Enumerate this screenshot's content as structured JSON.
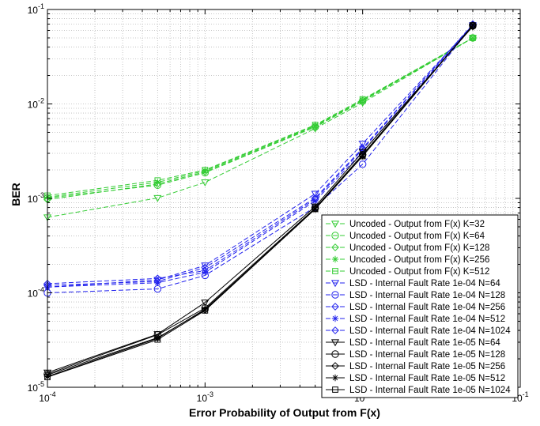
{
  "chart_data": {
    "type": "line",
    "title": "",
    "xlabel": "Error Probability of Output from F(x)",
    "ylabel": "BER",
    "xscale": "log",
    "yscale": "log",
    "xlim": [
      0.0001,
      0.1
    ],
    "ylim": [
      1e-05,
      0.1
    ],
    "grid": true,
    "legend_position": "bottom-right",
    "x_ticks": [
      {
        "value": 0.0001,
        "base": "10",
        "exp": "-4"
      },
      {
        "value": 0.001,
        "base": "10",
        "exp": "-3"
      },
      {
        "value": 0.01,
        "base": "10",
        "exp": "-2"
      },
      {
        "value": 0.1,
        "base": "10",
        "exp": "-1"
      }
    ],
    "y_ticks": [
      {
        "value": 1e-05,
        "base": "10",
        "exp": "-5"
      },
      {
        "value": 0.0001,
        "base": "10",
        "exp": "-4"
      },
      {
        "value": 0.001,
        "base": "10",
        "exp": "-3"
      },
      {
        "value": 0.01,
        "base": "10",
        "exp": "-2"
      },
      {
        "value": 0.1,
        "base": "10",
        "exp": "-1"
      }
    ],
    "x": [
      0.0001,
      0.0005,
      0.001,
      0.005,
      0.01,
      0.05
    ],
    "series": [
      {
        "name": "Uncoded - Output from F(x) K=32",
        "color": "#33cc33",
        "dash": true,
        "marker": "triangle-down",
        "values": [
          0.00063,
          0.00101,
          0.00148,
          0.0055,
          0.0103,
          0.05
        ]
      },
      {
        "name": "Uncoded - Output from F(x) K=64",
        "color": "#33cc33",
        "dash": true,
        "marker": "circle",
        "values": [
          0.00101,
          0.00138,
          0.00187,
          0.0057,
          0.0107,
          0.05
        ]
      },
      {
        "name": "Uncoded - Output from F(x) K=128",
        "color": "#33cc33",
        "dash": true,
        "marker": "diamond",
        "values": [
          0.00097,
          0.00142,
          0.00191,
          0.0058,
          0.0109,
          0.05
        ]
      },
      {
        "name": "Uncoded - Output from F(x) K=256",
        "color": "#33cc33",
        "dash": true,
        "marker": "star",
        "values": [
          0.00103,
          0.00148,
          0.00196,
          0.0059,
          0.011,
          0.05
        ]
      },
      {
        "name": "Uncoded - Output from F(x) K=512",
        "color": "#33cc33",
        "dash": true,
        "marker": "square",
        "values": [
          0.00107,
          0.00155,
          0.002,
          0.006,
          0.0112,
          0.05
        ]
      },
      {
        "name": "LSD - Internal Fault Rate 1e-04 N=64",
        "color": "#2222ee",
        "dash": true,
        "marker": "triangle-down",
        "values": [
          0.000115,
          0.000137,
          0.000195,
          0.00112,
          0.0038,
          0.068
        ]
      },
      {
        "name": "LSD - Internal Fault Rate 1e-04 N=128",
        "color": "#2222ee",
        "dash": true,
        "marker": "circle",
        "values": [
          0.0001,
          0.00011,
          0.000153,
          0.00081,
          0.0023,
          0.068
        ]
      },
      {
        "name": "LSD - Internal Fault Rate 1e-04 N=256",
        "color": "#2222ee",
        "dash": true,
        "marker": "diamond",
        "values": [
          0.00012,
          0.000132,
          0.000185,
          0.00101,
          0.0034,
          0.069
        ]
      },
      {
        "name": "LSD - Internal Fault Rate 1e-04 N=512",
        "color": "#2222ee",
        "dash": true,
        "marker": "star",
        "values": [
          0.000115,
          0.000128,
          0.000165,
          0.00094,
          0.0031,
          0.069
        ]
      },
      {
        "name": "LSD - Internal Fault Rate 1e-04 N=1024",
        "color": "#2222ee",
        "dash": true,
        "marker": "diamond",
        "values": [
          0.000125,
          0.000142,
          0.000172,
          0.00098,
          0.0033,
          0.07
        ]
      },
      {
        "name": "LSD - Internal Fault Rate 1e-05 N=64",
        "color": "#000000",
        "dash": false,
        "marker": "triangle-down",
        "values": [
          1.43e-05,
          3.65e-05,
          7.9e-05,
          0.00082,
          0.0031,
          0.066
        ]
      },
      {
        "name": "LSD - Internal Fault Rate 1e-05 N=128",
        "color": "#000000",
        "dash": false,
        "marker": "circle",
        "values": [
          1.38e-05,
          3.6e-05,
          6.9e-05,
          0.00079,
          0.0029,
          0.067
        ]
      },
      {
        "name": "LSD - Internal Fault Rate 1e-05 N=256",
        "color": "#000000",
        "dash": false,
        "marker": "diamond",
        "values": [
          1.35e-05,
          3.35e-05,
          6.6e-05,
          0.00078,
          0.0029,
          0.068
        ]
      },
      {
        "name": "LSD - Internal Fault Rate 1e-05 N=512",
        "color": "#000000",
        "dash": false,
        "marker": "star",
        "values": [
          1.3e-05,
          3.3e-05,
          6.7e-05,
          0.00077,
          0.0028,
          0.068
        ]
      },
      {
        "name": "LSD - Internal Fault Rate 1e-05 N=1024",
        "color": "#000000",
        "dash": false,
        "marker": "square",
        "values": [
          1.28e-05,
          3.2e-05,
          6.5e-05,
          0.00077,
          0.0028,
          0.068
        ]
      }
    ]
  }
}
